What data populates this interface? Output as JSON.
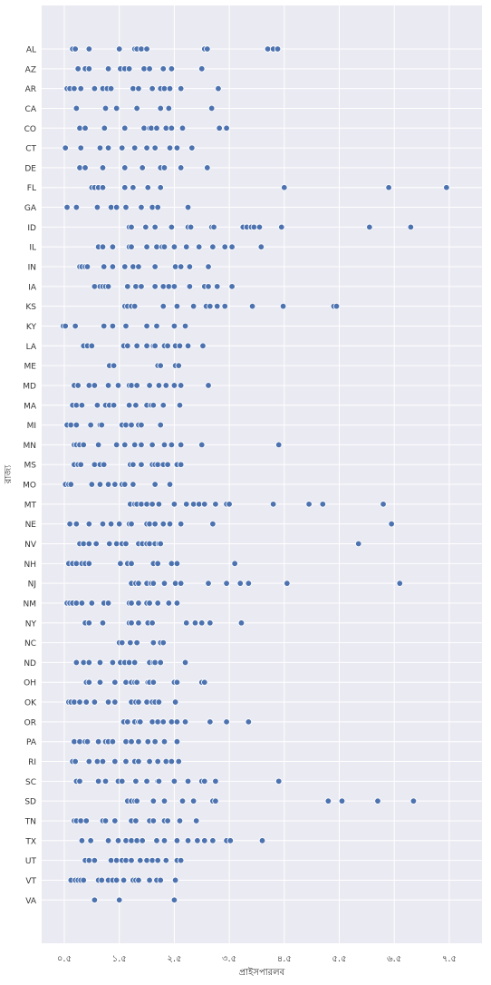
{
  "chart_data": {
    "type": "scatter",
    "title": "",
    "xlabel": "প্রাইসপারলব",
    "ylabel": "রাজ্য",
    "xlim": [
      0.4,
      8.4
    ],
    "x_ticks": [
      {
        "value": 0.5,
        "label": "০.৫"
      },
      {
        "value": 1.5,
        "label": "১.৫"
      },
      {
        "value": 2.5,
        "label": "২.৫"
      },
      {
        "value": 3.5,
        "label": "৩.৫"
      },
      {
        "value": 4.5,
        "label": "৪.৫"
      },
      {
        "value": 5.5,
        "label": "৫.৫"
      },
      {
        "value": 6.5,
        "label": "৬.৫"
      },
      {
        "value": 7.5,
        "label": "৭.৫"
      }
    ],
    "grid": true,
    "background": "#eaeaf2",
    "marker_color": "#4c72b0",
    "marker_edge": "#ffffff",
    "legend": "none",
    "rows": [
      {
        "label": "AL",
        "x": [
          0.65,
          0.7,
          0.95,
          1.5,
          1.78,
          1.82,
          1.9,
          2.0,
          3.05,
          3.1,
          4.2,
          4.3,
          4.38
        ]
      },
      {
        "label": "AZ",
        "x": [
          0.75,
          0.88,
          0.95,
          1.3,
          1.52,
          1.6,
          1.68,
          1.95,
          2.05,
          2.3,
          2.45,
          3.0
        ]
      },
      {
        "label": "AR",
        "x": [
          0.55,
          0.6,
          0.68,
          0.8,
          1.05,
          1.2,
          1.28,
          1.35,
          1.75,
          1.85,
          2.1,
          2.25,
          2.32,
          2.42,
          2.62,
          3.3
        ]
      },
      {
        "label": "CA",
        "x": [
          0.72,
          1.25,
          1.45,
          1.82,
          2.25,
          2.4,
          3.18
        ]
      },
      {
        "label": "CO",
        "x": [
          0.78,
          0.88,
          1.23,
          1.6,
          1.95,
          2.05,
          2.08,
          2.18,
          2.35,
          2.45,
          2.65,
          3.32,
          3.45
        ]
      },
      {
        "label": "CT",
        "x": [
          0.52,
          0.8,
          1.15,
          1.3,
          1.55,
          1.78,
          2.0,
          2.15,
          2.42,
          2.55,
          2.82
        ]
      },
      {
        "label": "DE",
        "x": [
          0.78,
          0.88,
          1.2,
          1.6,
          1.92,
          2.25,
          2.32,
          2.62,
          3.1
        ]
      },
      {
        "label": "FL",
        "x": [
          1.0,
          1.05,
          1.12,
          1.2,
          1.6,
          1.75,
          2.02,
          2.25,
          4.5,
          6.4,
          7.45
        ]
      },
      {
        "label": "GA",
        "x": [
          0.55,
          0.72,
          1.1,
          1.35,
          1.45,
          1.62,
          1.9,
          2.1,
          2.2,
          2.75
        ]
      },
      {
        "label": "ID",
        "x": [
          1.68,
          1.72,
          1.98,
          2.15,
          2.45,
          2.75,
          2.8,
          3.18,
          3.22,
          3.75,
          3.82,
          3.9,
          3.95,
          4.05,
          4.45,
          6.05,
          6.8
        ]
      },
      {
        "label": "IL",
        "x": [
          1.12,
          1.2,
          1.38,
          1.68,
          1.72,
          2.0,
          2.18,
          2.28,
          2.32,
          2.5,
          2.72,
          2.95,
          3.2,
          3.42,
          3.55,
          4.08
        ]
      },
      {
        "label": "IN",
        "x": [
          0.78,
          0.82,
          0.88,
          0.92,
          1.22,
          1.38,
          1.6,
          1.75,
          1.85,
          2.15,
          2.52,
          2.62,
          2.78,
          3.12
        ]
      },
      {
        "label": "IA",
        "x": [
          1.05,
          1.15,
          1.2,
          1.25,
          1.3,
          1.65,
          1.8,
          1.9,
          2.15,
          2.3,
          2.4,
          2.5,
          2.78,
          3.05,
          3.12,
          3.28,
          3.55
        ]
      },
      {
        "label": "KS",
        "x": [
          1.6,
          1.65,
          1.72,
          1.78,
          2.3,
          2.55,
          2.85,
          3.08,
          3.15,
          3.28,
          3.42,
          3.92,
          4.48,
          5.4,
          5.45
        ]
      },
      {
        "label": "KY",
        "x": [
          0.48,
          0.52,
          0.7,
          1.22,
          1.38,
          1.62,
          2.0,
          2.18,
          2.5,
          2.7
        ]
      },
      {
        "label": "LA",
        "x": [
          0.85,
          0.92,
          1.0,
          1.58,
          1.65,
          1.82,
          2.0,
          2.12,
          2.15,
          2.32,
          2.38,
          2.52,
          2.6,
          2.75,
          3.02
        ]
      },
      {
        "label": "ME",
        "x": [
          1.32,
          1.4,
          2.2,
          2.25,
          2.52,
          2.58
        ]
      },
      {
        "label": "MD",
        "x": [
          0.68,
          0.75,
          0.95,
          1.05,
          1.3,
          1.48,
          1.68,
          1.72,
          1.82,
          2.05,
          2.22,
          2.35,
          2.5,
          2.62,
          3.12
        ]
      },
      {
        "label": "MA",
        "x": [
          0.65,
          0.72,
          0.82,
          1.1,
          1.25,
          1.32,
          1.4,
          1.68,
          1.8,
          2.0,
          2.08,
          2.12,
          2.3,
          2.6
        ]
      },
      {
        "label": "MI",
        "x": [
          0.55,
          0.62,
          0.72,
          0.98,
          1.15,
          1.18,
          1.55,
          1.62,
          1.72,
          1.85,
          1.9,
          2.25
        ]
      },
      {
        "label": "MN",
        "x": [
          0.68,
          0.72,
          0.78,
          0.85,
          1.12,
          1.45,
          1.6,
          1.78,
          1.9,
          2.1,
          2.32,
          2.45,
          2.62,
          3.0,
          4.4
        ]
      },
      {
        "label": "MS",
        "x": [
          0.68,
          0.75,
          0.8,
          1.05,
          1.15,
          1.22,
          1.7,
          1.75,
          1.9,
          2.1,
          2.15,
          2.2,
          2.3,
          2.38,
          2.55,
          2.62
        ]
      },
      {
        "label": "MO",
        "x": [
          0.52,
          0.58,
          0.62,
          1.0,
          1.15,
          1.3,
          1.42,
          1.55,
          1.6,
          1.75,
          2.15,
          2.42
        ]
      },
      {
        "label": "MT",
        "x": [
          1.7,
          1.78,
          1.82,
          1.9,
          2.0,
          2.1,
          2.22,
          2.5,
          2.72,
          2.85,
          2.95,
          3.05,
          3.25,
          3.45,
          3.5,
          4.3,
          4.95,
          5.2,
          6.3
        ]
      },
      {
        "label": "NE",
        "x": [
          0.6,
          0.72,
          0.95,
          1.2,
          1.35,
          1.5,
          1.68,
          1.72,
          2.0,
          2.05,
          2.15,
          2.3,
          2.42,
          2.62,
          3.2,
          6.45
        ]
      },
      {
        "label": "NV",
        "x": [
          0.78,
          0.85,
          0.95,
          1.08,
          1.32,
          1.45,
          1.55,
          1.62,
          1.85,
          1.92,
          2.0,
          2.05,
          2.15,
          2.22,
          2.25,
          5.85
        ]
      },
      {
        "label": "NH",
        "x": [
          0.58,
          0.65,
          0.72,
          0.82,
          0.88,
          0.95,
          1.52,
          1.65,
          1.72,
          2.12,
          2.2,
          2.45,
          2.55,
          3.6
        ]
      },
      {
        "label": "NJ",
        "x": [
          1.72,
          1.8,
          1.85,
          2.0,
          2.08,
          2.12,
          2.32,
          2.52,
          2.62,
          3.12,
          3.45,
          3.7,
          3.85,
          4.55,
          6.6
        ]
      },
      {
        "label": "NM",
        "x": [
          0.55,
          0.6,
          0.65,
          0.72,
          0.82,
          1.0,
          1.22,
          1.3,
          1.68,
          1.72,
          1.85,
          2.0,
          2.05,
          2.2,
          2.4,
          2.55
        ]
      },
      {
        "label": "NY",
        "x": [
          0.88,
          0.95,
          1.2,
          1.68,
          1.72,
          1.85,
          2.02,
          2.1,
          2.72,
          2.88,
          3.0,
          3.15,
          3.72
        ]
      },
      {
        "label": "NC",
        "x": [
          1.5,
          1.55,
          1.7,
          1.82,
          2.12,
          2.25,
          2.3
        ]
      },
      {
        "label": "ND",
        "x": [
          0.72,
          0.85,
          0.95,
          1.15,
          1.38,
          1.52,
          1.6,
          1.68,
          1.78,
          2.05,
          2.12,
          2.15,
          2.25,
          2.7
        ]
      },
      {
        "label": "OH",
        "x": [
          0.9,
          0.95,
          1.15,
          1.42,
          1.62,
          1.72,
          1.78,
          1.82,
          2.02,
          2.05,
          2.12,
          2.5,
          2.55,
          3.0,
          3.05
        ]
      },
      {
        "label": "OK",
        "x": [
          0.58,
          0.62,
          0.68,
          0.78,
          0.9,
          1.05,
          1.3,
          1.42,
          1.72,
          1.8,
          1.85,
          2.0,
          2.1,
          2.15,
          2.22,
          2.52
        ]
      },
      {
        "label": "OR",
        "x": [
          1.58,
          1.65,
          1.78,
          1.85,
          1.88,
          2.1,
          2.2,
          2.3,
          2.45,
          2.55,
          2.7,
          3.15,
          3.45,
          3.85
        ]
      },
      {
        "label": "PA",
        "x": [
          0.68,
          0.78,
          0.88,
          0.92,
          1.12,
          1.25,
          1.3,
          1.38,
          1.62,
          1.72,
          1.85,
          2.02,
          2.15,
          2.32,
          2.55
        ]
      },
      {
        "label": "RI",
        "x": [
          0.65,
          0.7,
          0.95,
          1.1,
          1.2,
          1.42,
          1.62,
          1.78,
          1.85,
          2.05,
          2.2,
          2.35,
          2.45,
          2.58
        ]
      },
      {
        "label": "SC",
        "x": [
          0.72,
          0.78,
          1.12,
          1.25,
          1.48,
          1.55,
          1.8,
          2.0,
          2.2,
          2.22,
          2.5,
          2.75,
          3.0,
          3.05,
          3.25,
          4.4
        ]
      },
      {
        "label": "SD",
        "x": [
          1.65,
          1.72,
          1.78,
          1.82,
          2.12,
          2.32,
          2.65,
          2.85,
          3.2,
          3.25,
          5.3,
          5.55,
          6.2,
          6.85
        ]
      },
      {
        "label": "TN",
        "x": [
          0.68,
          0.72,
          0.8,
          0.9,
          1.2,
          1.25,
          1.42,
          1.72,
          1.8,
          2.05,
          2.12,
          2.32,
          2.38,
          2.6,
          2.9
        ]
      },
      {
        "label": "TX",
        "x": [
          0.82,
          0.98,
          1.3,
          1.48,
          1.62,
          1.72,
          1.82,
          1.92,
          2.18,
          2.32,
          2.55,
          2.75,
          2.92,
          3.05,
          3.2,
          3.45,
          3.52,
          4.1
        ]
      },
      {
        "label": "UT",
        "x": [
          0.88,
          0.95,
          1.05,
          1.35,
          1.45,
          1.55,
          1.62,
          1.72,
          1.88,
          2.0,
          2.1,
          2.2,
          2.35,
          2.55,
          2.62
        ]
      },
      {
        "label": "VT",
        "x": [
          0.62,
          0.7,
          0.75,
          0.8,
          0.85,
          1.12,
          1.18,
          1.3,
          1.38,
          1.45,
          1.58,
          1.75,
          1.8,
          1.85,
          2.05,
          2.18,
          2.25,
          2.52
        ]
      },
      {
        "label": "VA",
        "x": [
          1.05,
          1.5,
          2.5
        ]
      }
    ]
  }
}
